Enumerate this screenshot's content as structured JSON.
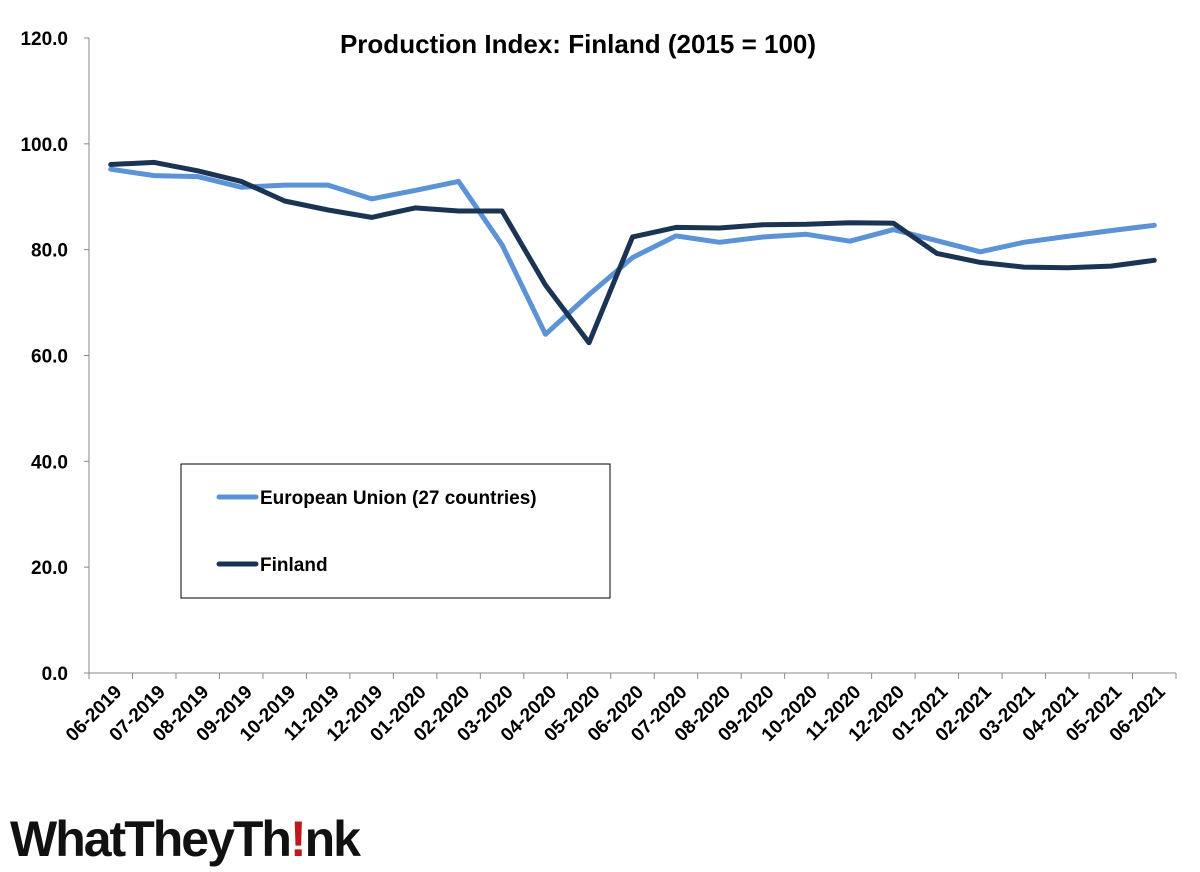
{
  "chart_data": {
    "type": "line",
    "title": "Production Index: Finland (2015 = 100)",
    "xlabel": "",
    "ylabel": "",
    "ylim": [
      0,
      120
    ],
    "yticks": [
      "0.0",
      "20.0",
      "40.0",
      "60.0",
      "80.0",
      "100.0",
      "120.0"
    ],
    "categories": [
      "06-2019",
      "07-2019",
      "08-2019",
      "09-2019",
      "10-2019",
      "11-2019",
      "12-2019",
      "01-2020",
      "02-2020",
      "03-2020",
      "04-2020",
      "05-2020",
      "06-2020",
      "07-2020",
      "08-2020",
      "09-2020",
      "10-2020",
      "11-2020",
      "12-2020",
      "01-2021",
      "02-2021",
      "03-2021",
      "04-2021",
      "05-2021",
      "06-2021"
    ],
    "series": [
      {
        "name": "European Union (27 countries)",
        "color": "#5b93d6",
        "values": [
          95.2,
          94.0,
          93.8,
          91.8,
          92.2,
          92.2,
          89.6,
          91.2,
          92.9,
          80.9,
          64.0,
          71.5,
          78.5,
          82.6,
          81.4,
          82.4,
          82.9,
          81.6,
          83.8,
          81.7,
          79.6,
          81.4,
          82.5,
          83.6,
          84.6
        ]
      },
      {
        "name": "Finland",
        "color": "#1c3454",
        "values": [
          96.1,
          96.5,
          94.9,
          92.9,
          89.2,
          87.5,
          86.1,
          87.9,
          87.3,
          87.3,
          73.3,
          62.4,
          82.4,
          84.2,
          84.1,
          84.7,
          84.8,
          85.1,
          85.0,
          79.3,
          77.6,
          76.7,
          76.6,
          76.9,
          78.0
        ]
      }
    ],
    "grid": false,
    "legend_position": "bottom-left"
  },
  "logo": {
    "part1": "WhatTheyTh",
    "bang": "!",
    "part2": "nk"
  }
}
